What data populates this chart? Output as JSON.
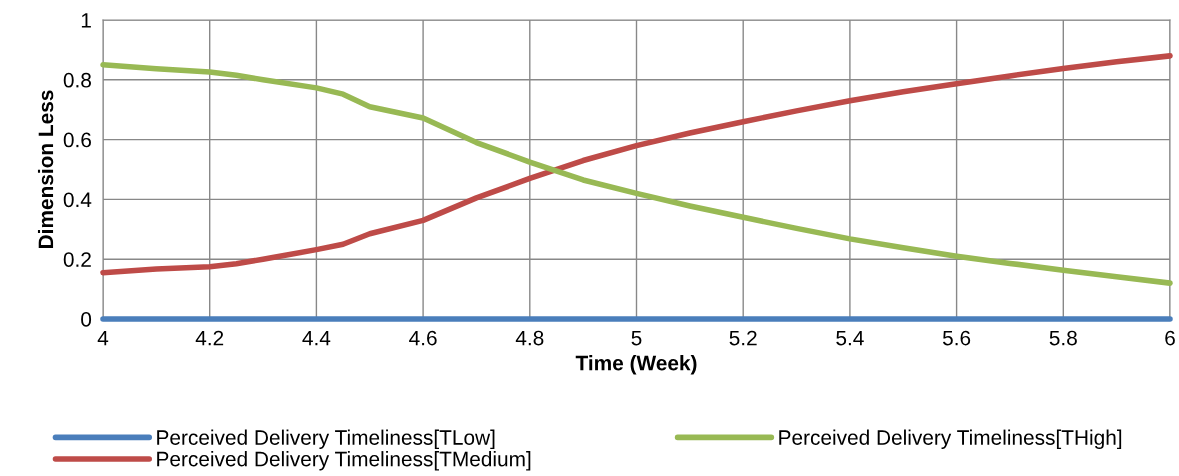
{
  "chart_data": {
    "type": "line",
    "xlabel": "Time (Week)",
    "ylabel": "Dimension Less",
    "x": [
      4,
      4.1,
      4.2,
      4.25,
      4.3,
      4.4,
      4.45,
      4.5,
      4.6,
      4.7,
      4.8,
      4.9,
      5,
      5.1,
      5.2,
      5.3,
      5.4,
      5.5,
      5.6,
      5.7,
      5.8,
      5.9,
      6
    ],
    "series": [
      {
        "name": "Perceived Delivery Timeliness[TLow]",
        "color": "#4a7ebb",
        "values": [
          0,
          0,
          0,
          0,
          0,
          0,
          0,
          0,
          0,
          0,
          0,
          0,
          0,
          0,
          0,
          0,
          0,
          0,
          0,
          0,
          0,
          0,
          0
        ]
      },
      {
        "name": "Perceived Delivery Timeliness[TMedium]",
        "color": "#be4b48",
        "values": [
          0.155,
          0.167,
          0.175,
          0.185,
          0.2,
          0.232,
          0.25,
          0.285,
          0.33,
          0.405,
          0.47,
          0.53,
          0.58,
          0.622,
          0.66,
          0.696,
          0.73,
          0.76,
          0.787,
          0.813,
          0.838,
          0.86,
          0.88
        ]
      },
      {
        "name": "Perceived Delivery Timeliness[THigh]",
        "color": "#98b954",
        "values": [
          0.85,
          0.837,
          0.826,
          0.815,
          0.8,
          0.773,
          0.752,
          0.71,
          0.672,
          0.59,
          0.525,
          0.465,
          0.42,
          0.378,
          0.34,
          0.303,
          0.268,
          0.238,
          0.21,
          0.186,
          0.163,
          0.141,
          0.12
        ]
      }
    ],
    "xlim": [
      4,
      6
    ],
    "xticks": [
      4,
      4.2,
      4.4,
      4.6,
      4.8,
      5,
      5.2,
      5.4,
      5.6,
      5.8,
      6
    ],
    "ylim": [
      0,
      1
    ],
    "yticks": [
      0,
      0.2,
      0.4,
      0.6,
      0.8,
      1
    ],
    "grid": true,
    "legend": "bottom",
    "marker": "none",
    "line_style": "solid"
  }
}
